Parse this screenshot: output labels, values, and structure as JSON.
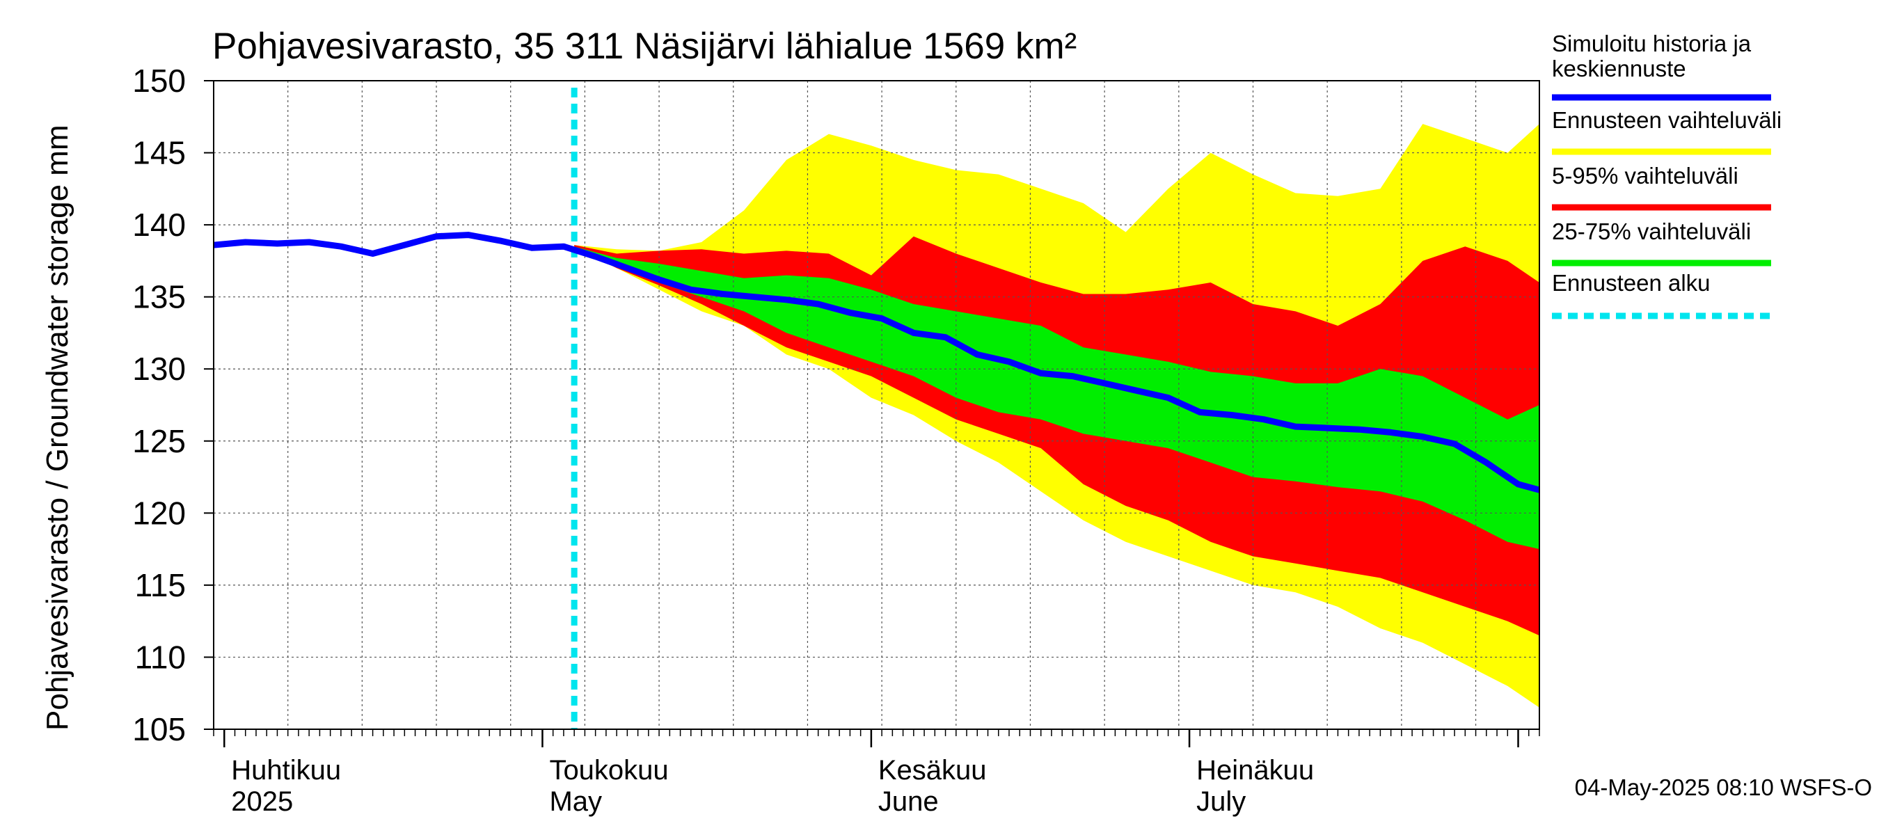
{
  "chart_data": {
    "type": "area",
    "title": "Pohjavesivarasto, 35 311 Näsijärvi lähialue 1569 km²",
    "ylabel": "Pohjavesivarasto / Groundwater storage   mm",
    "ylim": [
      105,
      150
    ],
    "yticks": [
      "105",
      "110",
      "115",
      "120",
      "125",
      "130",
      "135",
      "140",
      "145",
      "150"
    ],
    "xlim": [
      "2025-03-31",
      "2025-08-03"
    ],
    "grid": true,
    "month_labels": [
      {
        "fi": "Huhtikuu",
        "en": "2025",
        "date": "2025-04-01"
      },
      {
        "fi": "Toukokuu",
        "en": "May",
        "date": "2025-05-01"
      },
      {
        "fi": "Kesäkuu",
        "en": "June",
        "date": "2025-06-01"
      },
      {
        "fi": "Heinäkuu",
        "en": "July",
        "date": "2025-07-01"
      }
    ],
    "forecast_start": "2025-05-04",
    "colors": {
      "full_range": "#ffff00",
      "range_5_95": "#ff0000",
      "range_25_75": "#00ee00",
      "median": "#0000ff",
      "forecast_start": "#00e5ee"
    },
    "legend": [
      {
        "label": "Simuloitu historia ja\nkeskiennuste",
        "color": "#0000ff",
        "style": "solid"
      },
      {
        "label": "Ennusteen vaihteluväli",
        "color": "#ffff00",
        "style": "solid"
      },
      {
        "label": "5-95% vaihteluväli",
        "color": "#ff0000",
        "style": "solid"
      },
      {
        "label": "25-75% vaihteluväli",
        "color": "#00ee00",
        "style": "solid"
      },
      {
        "label": "Ennusteen alku",
        "color": "#00e5ee",
        "style": "dashed"
      }
    ],
    "series": [
      {
        "name": "Simuloitu historia ja keskiennuste",
        "x": [
          "2025-03-31",
          "2025-04-03",
          "2025-04-06",
          "2025-04-09",
          "2025-04-12",
          "2025-04-15",
          "2025-04-18",
          "2025-04-21",
          "2025-04-24",
          "2025-04-27",
          "2025-04-30",
          "2025-05-03",
          "2025-05-06",
          "2025-05-09",
          "2025-05-12",
          "2025-05-15",
          "2025-05-18",
          "2025-05-21",
          "2025-05-24",
          "2025-05-27",
          "2025-05-30",
          "2025-06-02",
          "2025-06-05",
          "2025-06-08",
          "2025-06-11",
          "2025-06-14",
          "2025-06-17",
          "2025-06-20",
          "2025-06-23",
          "2025-06-26",
          "2025-06-29",
          "2025-07-02",
          "2025-07-05",
          "2025-07-08",
          "2025-07-11",
          "2025-07-14",
          "2025-07-17",
          "2025-07-20",
          "2025-07-23",
          "2025-07-26",
          "2025-07-29",
          "2025-08-01",
          "2025-08-03"
        ],
        "values": [
          138.6,
          138.8,
          138.7,
          138.8,
          138.5,
          138.0,
          138.6,
          139.2,
          139.3,
          138.9,
          138.4,
          138.5,
          137.8,
          137.0,
          136.2,
          135.5,
          135.2,
          135.0,
          134.8,
          134.5,
          133.9,
          133.5,
          132.5,
          132.2,
          131.0,
          130.5,
          129.7,
          129.5,
          129.0,
          128.5,
          128.0,
          127.0,
          126.8,
          126.5,
          126.0,
          125.9,
          125.8,
          125.6,
          125.3,
          124.8,
          123.5,
          122.0,
          121.6
        ]
      },
      {
        "name": "Ennusteen vaihteluväli",
        "x": [
          "2025-05-04",
          "2025-05-08",
          "2025-05-12",
          "2025-05-16",
          "2025-05-20",
          "2025-05-24",
          "2025-05-28",
          "2025-06-01",
          "2025-06-05",
          "2025-06-09",
          "2025-06-13",
          "2025-06-17",
          "2025-06-21",
          "2025-06-25",
          "2025-06-29",
          "2025-07-03",
          "2025-07-07",
          "2025-07-11",
          "2025-07-15",
          "2025-07-19",
          "2025-07-23",
          "2025-07-27",
          "2025-07-31",
          "2025-08-03"
        ],
        "upper": [
          138.6,
          138.3,
          138.2,
          138.8,
          141.0,
          144.5,
          146.3,
          145.5,
          144.5,
          143.8,
          143.5,
          142.5,
          141.5,
          139.5,
          142.5,
          145.0,
          143.5,
          142.2,
          142.0,
          142.5,
          147.0,
          146.0,
          145.0,
          147.0
        ],
        "lower": [
          138.4,
          137.0,
          135.5,
          134.0,
          133.0,
          131.0,
          130.0,
          128.0,
          126.8,
          125.0,
          123.5,
          121.5,
          119.5,
          118.0,
          117.0,
          116.0,
          115.0,
          114.5,
          113.5,
          112.0,
          111.0,
          109.5,
          108.0,
          106.5
        ]
      },
      {
        "name": "5-95% vaihteluväli",
        "x": [
          "2025-05-04",
          "2025-05-08",
          "2025-05-12",
          "2025-05-16",
          "2025-05-20",
          "2025-05-24",
          "2025-05-28",
          "2025-06-01",
          "2025-06-05",
          "2025-06-09",
          "2025-06-13",
          "2025-06-17",
          "2025-06-21",
          "2025-06-25",
          "2025-06-29",
          "2025-07-03",
          "2025-07-07",
          "2025-07-11",
          "2025-07-15",
          "2025-07-19",
          "2025-07-23",
          "2025-07-27",
          "2025-07-31",
          "2025-08-03"
        ],
        "upper": [
          138.6,
          138.0,
          138.2,
          138.3,
          138.0,
          138.2,
          138.0,
          136.5,
          139.2,
          138.0,
          137.0,
          136.0,
          135.2,
          135.2,
          135.5,
          136.0,
          134.5,
          134.0,
          133.0,
          134.5,
          137.5,
          138.5,
          137.5,
          136.0
        ],
        "lower": [
          138.4,
          137.0,
          135.8,
          134.5,
          133.0,
          131.5,
          130.5,
          129.5,
          128.0,
          126.5,
          125.5,
          124.5,
          122.0,
          120.5,
          119.5,
          118.0,
          117.0,
          116.5,
          116.0,
          115.5,
          114.5,
          113.5,
          112.5,
          111.5
        ]
      },
      {
        "name": "25-75% vaihteluväli",
        "x": [
          "2025-05-04",
          "2025-05-08",
          "2025-05-12",
          "2025-05-16",
          "2025-05-20",
          "2025-05-24",
          "2025-05-28",
          "2025-06-01",
          "2025-06-05",
          "2025-06-09",
          "2025-06-13",
          "2025-06-17",
          "2025-06-21",
          "2025-06-25",
          "2025-06-29",
          "2025-07-03",
          "2025-07-07",
          "2025-07-11",
          "2025-07-15",
          "2025-07-19",
          "2025-07-23",
          "2025-07-27",
          "2025-07-31",
          "2025-08-03"
        ],
        "upper": [
          138.5,
          137.7,
          137.3,
          136.8,
          136.3,
          136.5,
          136.3,
          135.5,
          134.5,
          134.0,
          133.5,
          133.0,
          131.5,
          131.0,
          130.5,
          129.8,
          129.5,
          129.0,
          129.0,
          130.0,
          129.5,
          128.0,
          126.5,
          127.5
        ],
        "lower": [
          138.4,
          137.2,
          136.0,
          135.0,
          134.0,
          132.5,
          131.5,
          130.5,
          129.5,
          128.0,
          127.0,
          126.5,
          125.5,
          125.0,
          124.5,
          123.5,
          122.5,
          122.2,
          121.8,
          121.5,
          120.8,
          119.5,
          118.0,
          117.5
        ]
      }
    ],
    "footer": "04-May-2025 08:10 WSFS-O"
  }
}
